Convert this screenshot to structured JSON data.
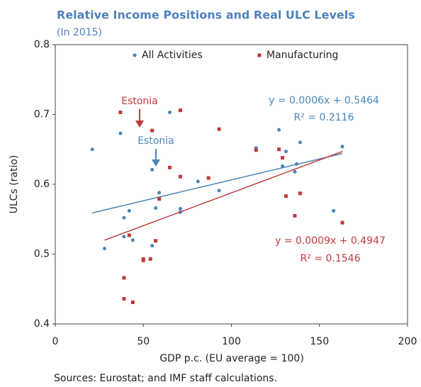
{
  "chart_data": {
    "type": "scatter",
    "title": "Relative Income Positions and Real ULC Levels",
    "subtitle": "(In 2015)",
    "x_label": "GDP p.c. (EU average = 100)",
    "y_label": "ULCs  (ratio)",
    "source": "Sources: Eurostat; and IMF staff calculations.",
    "xlim": [
      0,
      200
    ],
    "xticks": [
      0,
      50,
      100,
      150,
      200
    ],
    "ylim": [
      0.4,
      0.8
    ],
    "yticks": [
      0.4,
      0.5,
      0.6,
      0.7,
      0.8
    ],
    "legend": "top",
    "series": [
      {
        "name": "All Activities",
        "color": "#4a86b8",
        "x": [
          21,
          28,
          37,
          39,
          39,
          42,
          44,
          55,
          55,
          57,
          59,
          65,
          71,
          71,
          81,
          93,
          114,
          127,
          129,
          131,
          136,
          137,
          139,
          158,
          163
        ],
        "values": [
          0.65,
          0.508,
          0.673,
          0.552,
          0.525,
          0.562,
          0.52,
          0.621,
          0.512,
          0.566,
          0.588,
          0.703,
          0.565,
          0.56,
          0.604,
          0.591,
          0.652,
          0.678,
          0.626,
          0.647,
          0.618,
          0.629,
          0.66,
          0.562,
          0.654
        ],
        "trend_x": [
          21,
          163
        ],
        "trend_y": [
          0.559,
          0.644
        ],
        "equation": "y = 0.0006x + 0.5464",
        "r2": "R² = 0.2116"
      },
      {
        "name": "Manufacturing",
        "color": "#c0393b",
        "x": [
          37,
          39,
          39,
          42,
          44,
          50,
          50,
          54,
          55,
          57,
          59,
          65,
          71,
          71,
          87,
          93,
          114,
          127,
          129,
          131,
          136,
          139,
          163
        ],
        "values": [
          0.703,
          0.466,
          0.436,
          0.527,
          0.431,
          0.491,
          0.493,
          0.493,
          0.677,
          0.519,
          0.579,
          0.624,
          0.706,
          0.611,
          0.609,
          0.679,
          0.649,
          0.65,
          0.638,
          0.583,
          0.555,
          0.587,
          0.545
        ],
        "trend_x": [
          28,
          163
        ],
        "trend_y": [
          0.52,
          0.647
        ],
        "equation": "y = 0.0009x + 0.4947",
        "r2": "R² = 0.1546"
      }
    ],
    "annotations": [
      "Estonia",
      "Estonia"
    ]
  }
}
